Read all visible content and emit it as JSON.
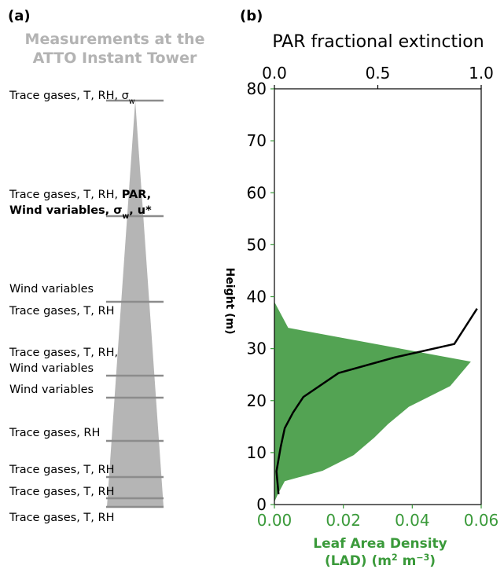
{
  "panel_a": {
    "label": "(a)",
    "title": [
      "Measurements at the",
      "ATTO Instant Tower"
    ],
    "labels": [
      [
        {
          "text": "Trace gases, T, RH, σ"
        },
        {
          "text": "w",
          "sub": true
        }
      ],
      [
        {
          "text": "Trace gases, T, RH, "
        },
        {
          "text": "PAR,",
          "bold": true
        }
      ],
      [
        {
          "text": "Wind variables, σ",
          "bold": true
        },
        {
          "text": "w",
          "bold": true,
          "sub": true
        },
        {
          "text": ", u*",
          "bold": true
        }
      ],
      [
        {
          "text": "Wind variables"
        }
      ],
      [
        {
          "text": "Trace gases, T, RH"
        }
      ],
      [
        {
          "text": "Trace gases, T, RH,"
        }
      ],
      [
        {
          "text": "Wind variables"
        }
      ],
      [
        {
          "text": "Wind variables"
        }
      ],
      [
        {
          "text": "Trace gases, RH"
        }
      ],
      [
        {
          "text": "Trace gases, T, RH"
        }
      ],
      [
        {
          "text": "Trace gases, T, RH"
        }
      ],
      [
        {
          "text": "Trace gases, T, RH"
        }
      ]
    ]
  },
  "chart_data": {
    "type": "profile",
    "label": "(b)",
    "x2label": "PAR fractional extinction",
    "ylabel": "Height (m)",
    "xlabel": [
      [
        {
          "text": "Leaf Area Density"
        }
      ],
      [
        {
          "text": "(LAD) (m"
        },
        {
          "text": "2",
          "sup": true
        },
        {
          "text": " m"
        },
        {
          "text": "−3",
          "sup": true
        },
        {
          "text": ")"
        }
      ]
    ],
    "xlim": [
      0,
      0.06
    ],
    "xticks": [
      {
        "value": 0,
        "label": "0.00"
      },
      0.02,
      0.04,
      0.06
    ],
    "x2lim": [
      0,
      1
    ],
    "x2ticks": [
      {
        "value": 0,
        "label": "0.0"
      },
      0.5,
      {
        "value": 1,
        "label": "1.0"
      }
    ],
    "ylim": [
      0,
      80
    ],
    "yticks": [
      0,
      10,
      20,
      30,
      40,
      50,
      60,
      70,
      80
    ],
    "xaxis_color": "#3a9a3a",
    "series": [
      {
        "kind": "area",
        "axis": "x",
        "color": "#4a9e4a",
        "y": [
          39,
          34,
          27.5,
          22.8,
          18.8,
          15.5,
          12.9,
          9.5,
          6.5,
          4.5,
          2,
          0.5
        ],
        "values": [
          0,
          0.004,
          0.057,
          0.051,
          0.039,
          0.033,
          0.029,
          0.023,
          0.014,
          0.003,
          0.001,
          0
        ]
      },
      {
        "kind": "line",
        "axis": "x2",
        "color": "#000000",
        "y": [
          37.7,
          30.9,
          28.3,
          25.3,
          20.7,
          17.7,
          14.7,
          11,
          6.4,
          2
        ],
        "values": [
          0.98,
          0.87,
          0.58,
          0.31,
          0.14,
          0.09,
          0.05,
          0.03,
          0.01,
          0.02
        ]
      }
    ]
  }
}
